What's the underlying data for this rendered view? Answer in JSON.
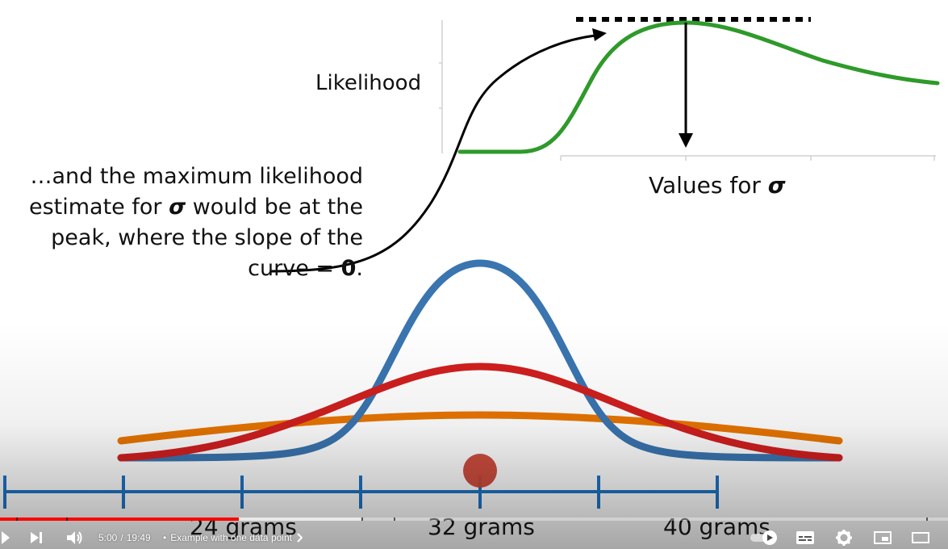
{
  "chart_top": {
    "ylabel": "Likelihood",
    "xlabel_prefix": "Values for",
    "xlabel_symbol": "σ",
    "curve_color": "#2e9a2a"
  },
  "annotation": {
    "line1": "…and the maximum likelihood",
    "line2a": "estimate for",
    "line2_symbol": "σ",
    "line2b": "would be at the",
    "line3": "peak, where the slope of the",
    "line4a": "curve = ",
    "line4_bold": "0",
    "line4b": "."
  },
  "chart_bottom": {
    "tick_labels": [
      "24 grams",
      "32 grams",
      "40 grams"
    ],
    "colors": {
      "narrow": "#3a75b0",
      "medium": "#d11f1f",
      "wide": "#e87500",
      "axis": "#1f74c4",
      "point": "#cc4535"
    }
  },
  "player": {
    "time_current": "5:00",
    "time_separator": "/",
    "time_total": "19:49",
    "chapter_bullet": "•",
    "chapter_title": "Example with one data point",
    "progress_played": 0.2523,
    "progress_buffered": 0.38,
    "icons": [
      "play-icon",
      "next-icon",
      "volume-icon",
      "autoplay-toggle-icon",
      "subtitles-icon",
      "settings-gear-icon",
      "miniplayer-icon",
      "theater-mode-icon"
    ]
  }
}
